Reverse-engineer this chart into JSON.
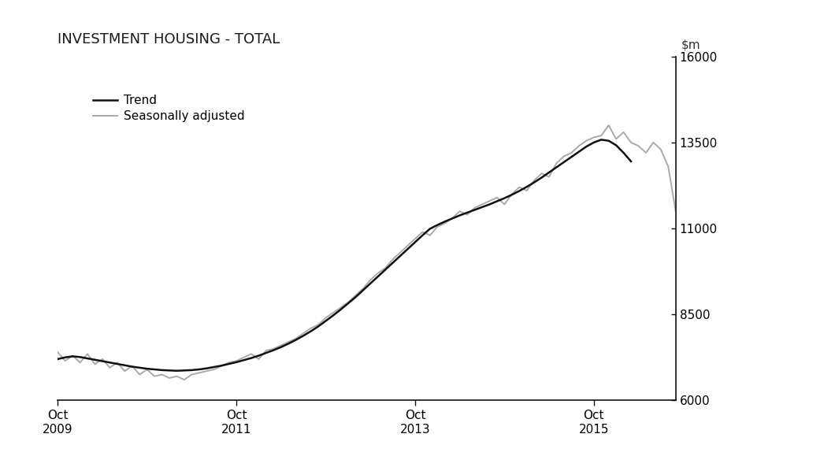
{
  "title": "INVESTMENT HOUSING - TOTAL",
  "ylim": [
    6000,
    16000
  ],
  "yticks": [
    6000,
    8500,
    11000,
    13500,
    16000
  ],
  "x_tick_labels": [
    "Oct\n2009",
    "Oct\n2011",
    "Oct\n2013",
    "Oct\n2015"
  ],
  "background_color": "#ffffff",
  "trend_color": "#111111",
  "seasonal_color": "#aaaaaa",
  "trend_linewidth": 1.8,
  "seasonal_linewidth": 1.4,
  "legend_labels": [
    "Trend",
    "Seasonally adjusted"
  ],
  "trend_data": [
    7200,
    7250,
    7280,
    7260,
    7220,
    7180,
    7140,
    7100,
    7060,
    7020,
    6980,
    6950,
    6920,
    6900,
    6880,
    6870,
    6860,
    6870,
    6880,
    6900,
    6930,
    6970,
    7010,
    7060,
    7110,
    7170,
    7230,
    7300,
    7380,
    7460,
    7550,
    7650,
    7760,
    7880,
    8010,
    8150,
    8310,
    8470,
    8640,
    8820,
    9000,
    9200,
    9400,
    9600,
    9800,
    10000,
    10200,
    10400,
    10600,
    10800,
    10990,
    11100,
    11200,
    11290,
    11380,
    11460,
    11540,
    11620,
    11700,
    11790,
    11880,
    11980,
    12090,
    12210,
    12340,
    12480,
    12630,
    12780,
    12930,
    13080,
    13230,
    13380,
    13500,
    13580,
    13550,
    13420,
    13200,
    12950
  ],
  "seasonal_data": [
    7400,
    7150,
    7300,
    7100,
    7350,
    7050,
    7200,
    6950,
    7100,
    6850,
    7000,
    6750,
    6900,
    6700,
    6750,
    6650,
    6700,
    6600,
    6750,
    6800,
    6850,
    6900,
    7000,
    7100,
    7150,
    7250,
    7350,
    7200,
    7450,
    7500,
    7600,
    7700,
    7800,
    7950,
    8100,
    8200,
    8400,
    8550,
    8700,
    8850,
    9050,
    9250,
    9500,
    9700,
    9850,
    10100,
    10300,
    10500,
    10700,
    10900,
    10800,
    11050,
    11150,
    11300,
    11500,
    11400,
    11600,
    11700,
    11800,
    11900,
    11700,
    12000,
    12200,
    12100,
    12400,
    12600,
    12500,
    12900,
    13100,
    13200,
    13400,
    13550,
    13650,
    13700,
    14000,
    13600,
    13800,
    13500,
    13400,
    13200,
    13500,
    13300,
    12800,
    11500
  ]
}
